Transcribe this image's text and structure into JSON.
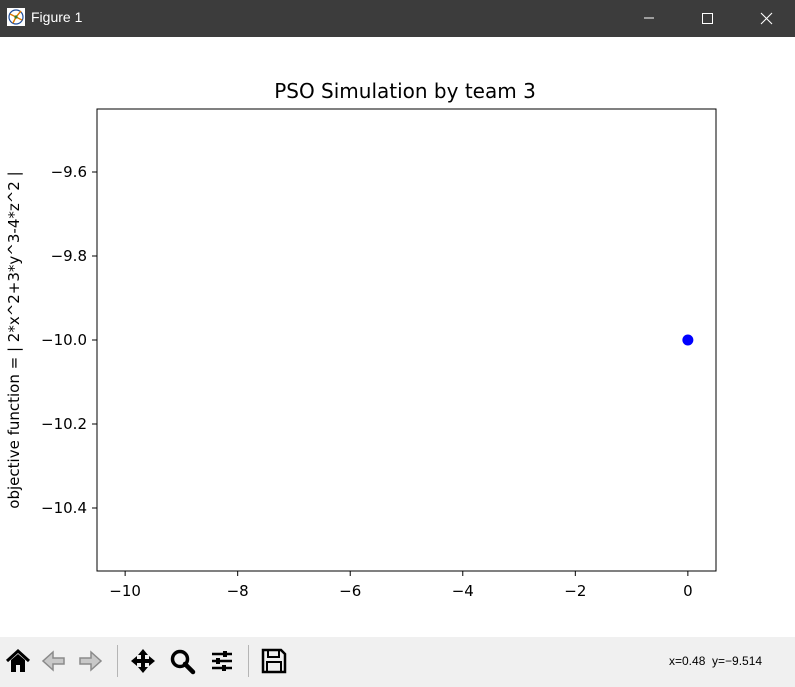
{
  "window": {
    "title": "Figure 1"
  },
  "toolbar": {
    "buttons": [
      {
        "icon": "home-icon"
      },
      {
        "icon": "back-arrow-icon"
      },
      {
        "icon": "forward-arrow-icon"
      },
      {
        "icon": "pan-icon"
      },
      {
        "icon": "zoom-icon"
      },
      {
        "icon": "configure-subplots-icon"
      },
      {
        "icon": "save-icon"
      }
    ],
    "coords_readout": "x=0.48  y=−9.514"
  },
  "chart_data": {
    "type": "scatter",
    "title": "PSO Simulation by team 3",
    "xlabel": "",
    "ylabel": "objective function = | 2*x^2+3*y^3-4*z^2 |",
    "xlim": [
      -10.5,
      0.5
    ],
    "ylim": [
      -10.55,
      -9.45
    ],
    "xticks": [
      -10,
      -8,
      -6,
      -4,
      -2,
      0
    ],
    "xtick_labels": [
      "−10",
      "−8",
      "−6",
      "−4",
      "−2",
      "0"
    ],
    "yticks": [
      -9.6,
      -9.8,
      -10.0,
      -10.2,
      -10.4
    ],
    "ytick_labels": [
      "−9.6",
      "−9.8",
      "−10.0",
      "−10.2",
      "−10.4"
    ],
    "grid": false,
    "series": [
      {
        "points": [
          {
            "x": 0,
            "y": -10.0
          }
        ],
        "color": "#0000ff"
      }
    ]
  }
}
